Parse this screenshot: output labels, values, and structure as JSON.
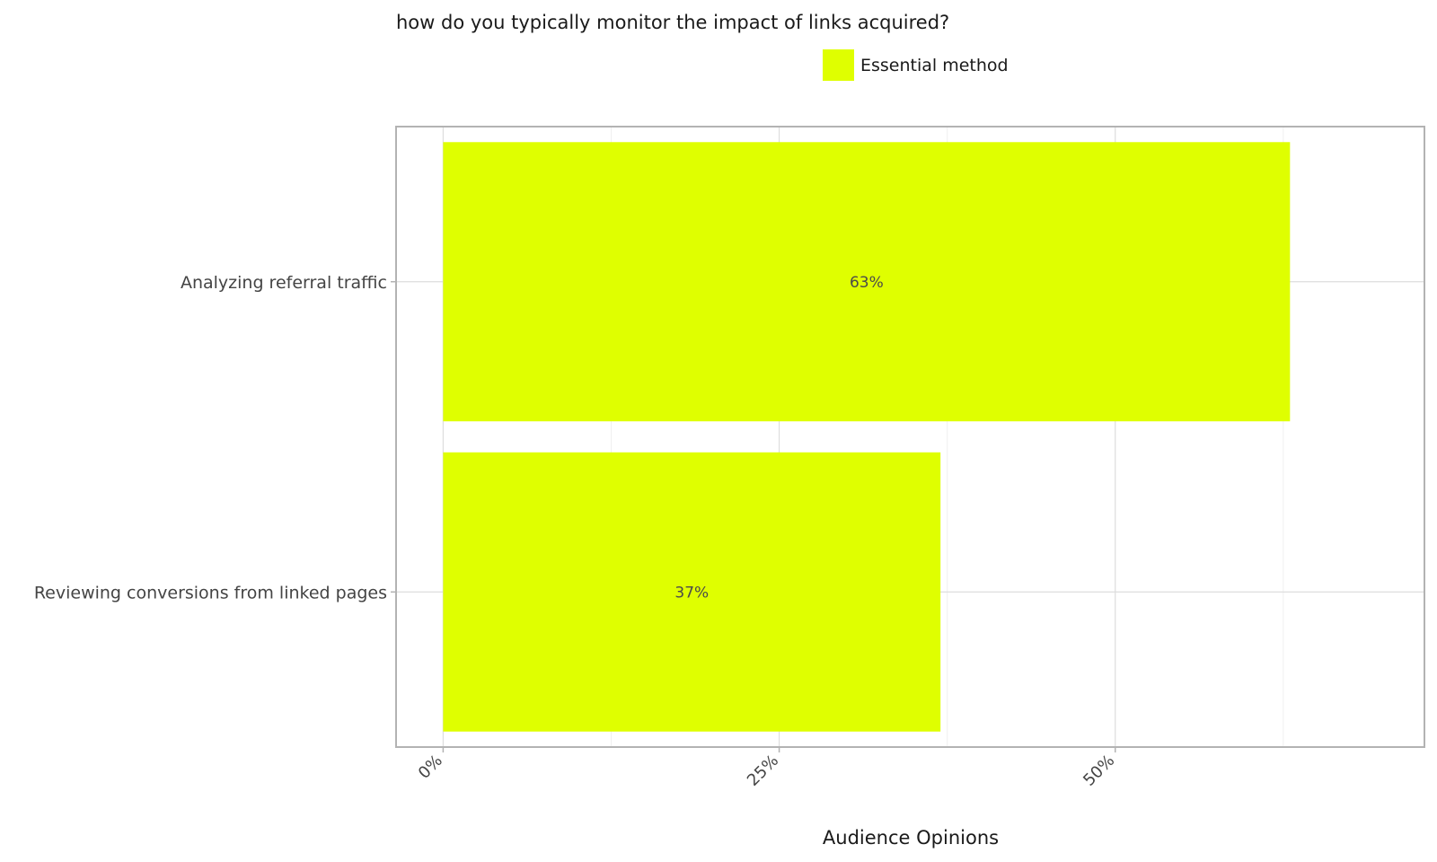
{
  "chart_data": {
    "type": "bar",
    "orientation": "horizontal",
    "title": "how do you typically monitor the impact of links acquired?",
    "xlabel": "Audience Opinions",
    "ylabel": "",
    "categories": [
      "Analyzing referral traffic",
      "Reviewing conversions from linked pages"
    ],
    "series": [
      {
        "name": "Essential method",
        "color": "#dfff00",
        "values": [
          63,
          37
        ],
        "labels": [
          "63%",
          "37%"
        ]
      }
    ],
    "xlim": [
      -3.5,
      73
    ],
    "x_ticks": [
      0,
      25,
      50
    ],
    "x_tick_labels": [
      "0%",
      "25%",
      "50%"
    ],
    "grid": true,
    "legend_position": "top"
  }
}
